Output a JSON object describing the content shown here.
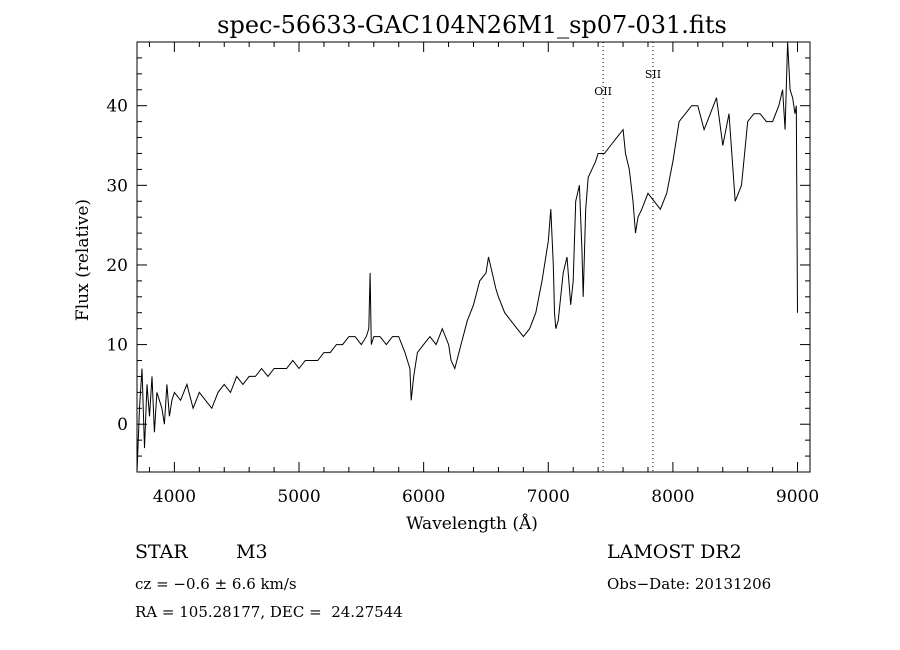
{
  "chart_data": {
    "type": "line",
    "title": "spec-56633-GAC104N26M1_sp07-031.fits",
    "xlabel": "Wavelength (Å)",
    "ylabel": "Flux (relative)",
    "xlim": [
      3700,
      9100
    ],
    "ylim": [
      -6,
      48
    ],
    "xticks": [
      4000,
      5000,
      6000,
      7000,
      8000,
      9000
    ],
    "xtick_labels": [
      "4000",
      "5000",
      "6000",
      "7000",
      "8000",
      "9000"
    ],
    "yticks": [
      0,
      10,
      20,
      30,
      40
    ],
    "ytick_labels": [
      "0",
      "10",
      "20",
      "30",
      "40"
    ],
    "grid": false,
    "series": [
      {
        "x": [
          3700,
          3720,
          3740,
          3760,
          3780,
          3800,
          3820,
          3840,
          3860,
          3880,
          3900,
          3920,
          3940,
          3960,
          3980,
          4000,
          4050,
          4100,
          4150,
          4200,
          4250,
          4300,
          4350,
          4400,
          4450,
          4500,
          4550,
          4600,
          4650,
          4700,
          4750,
          4800,
          4850,
          4900,
          4950,
          5000,
          5050,
          5100,
          5150,
          5200,
          5250,
          5300,
          5350,
          5400,
          5450,
          5500,
          5540,
          5560,
          5570,
          5580,
          5600,
          5650,
          5700,
          5750,
          5800,
          5850,
          5870,
          5890,
          5900,
          5920,
          5950,
          6000,
          6050,
          6100,
          6150,
          6200,
          6220,
          6250,
          6300,
          6350,
          6400,
          6450,
          6500,
          6520,
          6550,
          6580,
          6600,
          6650,
          6700,
          6750,
          6800,
          6850,
          6900,
          6950,
          7000,
          7020,
          7040,
          7050,
          7060,
          7080,
          7100,
          7120,
          7150,
          7180,
          7200,
          7220,
          7250,
          7270,
          7280,
          7300,
          7320,
          7350,
          7380,
          7400,
          7450,
          7500,
          7550,
          7600,
          7620,
          7650,
          7680,
          7700,
          7720,
          7750,
          7800,
          7850,
          7900,
          7950,
          8000,
          8050,
          8100,
          8150,
          8200,
          8250,
          8300,
          8350,
          8400,
          8450,
          8500,
          8550,
          8600,
          8650,
          8700,
          8750,
          8800,
          8850,
          8880,
          8900,
          8920,
          8940,
          8960,
          8980,
          8990,
          9000
        ],
        "y": [
          -6,
          2,
          7,
          -3,
          5,
          1,
          6,
          -1,
          4,
          3,
          2,
          0,
          5,
          1,
          3,
          4,
          3,
          5,
          2,
          4,
          3,
          2,
          4,
          5,
          4,
          6,
          5,
          6,
          6,
          7,
          6,
          7,
          7,
          7,
          8,
          7,
          8,
          8,
          8,
          9,
          9,
          10,
          10,
          11,
          11,
          10,
          11,
          12,
          19,
          10,
          11,
          11,
          10,
          11,
          11,
          9,
          8,
          7,
          3,
          6,
          9,
          10,
          11,
          10,
          12,
          10,
          8,
          7,
          10,
          13,
          15,
          18,
          19,
          21,
          19,
          17,
          16,
          14,
          13,
          12,
          11,
          12,
          14,
          18,
          23,
          27,
          20,
          14,
          12,
          13,
          16,
          19,
          21,
          15,
          18,
          28,
          30,
          22,
          16,
          27,
          31,
          32,
          33,
          34,
          34,
          35,
          36,
          37,
          34,
          32,
          28,
          24,
          26,
          27,
          29,
          28,
          27,
          29,
          33,
          38,
          39,
          40,
          40,
          37,
          39,
          41,
          35,
          39,
          28,
          30,
          38,
          39,
          39,
          38,
          38,
          40,
          42,
          37,
          48,
          42,
          41,
          39,
          40,
          14
        ]
      }
    ],
    "annotations": [
      {
        "label": "OII",
        "x": 7440
      },
      {
        "label": "SII",
        "x": 7840
      }
    ]
  },
  "info": {
    "star_label": "STAR",
    "spectral_class": "M3",
    "survey": "LAMOST DR2",
    "cz_text": "cz = −0.6 ± 6.6 km/s",
    "obs_date": "Obs−Date: 20131206",
    "coords": "RA = 105.28177, DEC =  24.27544"
  }
}
